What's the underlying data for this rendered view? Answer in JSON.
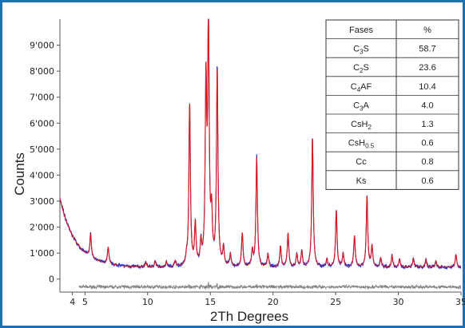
{
  "chart_data": {
    "type": "line",
    "xlabel": "2Th Degrees",
    "ylabel": "Counts",
    "xlim": [
      3,
      35
    ],
    "ylim": [
      -500,
      10000
    ],
    "x_ticks": [
      {
        "v": 4,
        "label": "4"
      },
      {
        "v": 5,
        "label": "5"
      },
      {
        "v": 10,
        "label": "10"
      },
      {
        "v": 15,
        "label": "15"
      },
      {
        "v": 20,
        "label": "20"
      },
      {
        "v": 25,
        "label": "25"
      },
      {
        "v": 30,
        "label": "30"
      },
      {
        "v": 35,
        "label": "35"
      }
    ],
    "y_ticks": [
      {
        "v": 0,
        "label": "0"
      },
      {
        "v": 1000,
        "label": "1'000"
      },
      {
        "v": 2000,
        "label": "2'000"
      },
      {
        "v": 3000,
        "label": "3'000"
      },
      {
        "v": 4000,
        "label": "4'000"
      },
      {
        "v": 5000,
        "label": "5'000"
      },
      {
        "v": 6000,
        "label": "6'000"
      },
      {
        "v": 7000,
        "label": "7'000"
      },
      {
        "v": 8000,
        "label": "8'000"
      },
      {
        "v": 9000,
        "label": "9'000"
      }
    ],
    "background": {
      "start": 3100,
      "decay": 1.3,
      "base": 450
    },
    "peaks": [
      {
        "x": 5.45,
        "h": 900
      },
      {
        "x": 6.85,
        "h": 650
      },
      {
        "x": 9.85,
        "h": 170
      },
      {
        "x": 10.6,
        "h": 230
      },
      {
        "x": 11.5,
        "h": 200
      },
      {
        "x": 12.2,
        "h": 220
      },
      {
        "x": 13.1,
        "h": 250
      },
      {
        "x": 13.35,
        "h": 6300
      },
      {
        "x": 13.8,
        "h": 1600
      },
      {
        "x": 14.25,
        "h": 800
      },
      {
        "x": 14.65,
        "h": 6800
      },
      {
        "x": 14.85,
        "h": 9300
      },
      {
        "x": 15.1,
        "h": 1800
      },
      {
        "x": 15.55,
        "h": 7500
      },
      {
        "x": 16.05,
        "h": 700
      },
      {
        "x": 16.6,
        "h": 450
      },
      {
        "x": 17.55,
        "h": 1300
      },
      {
        "x": 18.35,
        "h": 600
      },
      {
        "x": 18.7,
        "h": 4200
      },
      {
        "x": 19.6,
        "h": 500
      },
      {
        "x": 20.6,
        "h": 800
      },
      {
        "x": 21.2,
        "h": 1300
      },
      {
        "x": 21.9,
        "h": 500
      },
      {
        "x": 22.3,
        "h": 600
      },
      {
        "x": 23.15,
        "h": 5000
      },
      {
        "x": 24.3,
        "h": 300
      },
      {
        "x": 25.05,
        "h": 2200
      },
      {
        "x": 25.6,
        "h": 500
      },
      {
        "x": 26.5,
        "h": 1200
      },
      {
        "x": 27.5,
        "h": 2700
      },
      {
        "x": 27.9,
        "h": 800
      },
      {
        "x": 28.6,
        "h": 350
      },
      {
        "x": 29.5,
        "h": 450
      },
      {
        "x": 30.1,
        "h": 300
      },
      {
        "x": 31.2,
        "h": 350
      },
      {
        "x": 32.2,
        "h": 300
      },
      {
        "x": 33.0,
        "h": 250
      },
      {
        "x": 34.6,
        "h": 500
      }
    ],
    "difference_offset": -300,
    "colors": {
      "observed": "#1f2fd0",
      "calculated": "#e01818",
      "difference": "#808080",
      "frame": "#1f6fb3"
    }
  },
  "phase_table": {
    "headers": [
      "Fases",
      "%"
    ],
    "rows": [
      {
        "phase": "C3S",
        "main": "C",
        "sub": "3",
        "tail": "S",
        "tail_sub": "",
        "pct": "58.7"
      },
      {
        "phase": "C2S",
        "main": "C",
        "sub": "2",
        "tail": "S",
        "tail_sub": "",
        "pct": "23.6"
      },
      {
        "phase": "C4AF",
        "main": "C",
        "sub": "4",
        "tail": "AF",
        "tail_sub": "",
        "pct": "10.4"
      },
      {
        "phase": "C3A",
        "main": "C",
        "sub": "3",
        "tail": "A",
        "tail_sub": "",
        "pct": "4.0"
      },
      {
        "phase": "CsH2",
        "main": "CsH",
        "sub": "2",
        "tail": "",
        "tail_sub": "",
        "pct": "1.3"
      },
      {
        "phase": "CsH0.5",
        "main": "CsH",
        "sub": "0.5",
        "tail": "",
        "tail_sub": "",
        "pct": "0.6"
      },
      {
        "phase": "Cc",
        "main": "Cc",
        "sub": "",
        "tail": "",
        "tail_sub": "",
        "pct": "0.8"
      },
      {
        "phase": "Ks",
        "main": "Ks",
        "sub": "",
        "tail": "",
        "tail_sub": "",
        "pct": "0.6"
      }
    ]
  }
}
